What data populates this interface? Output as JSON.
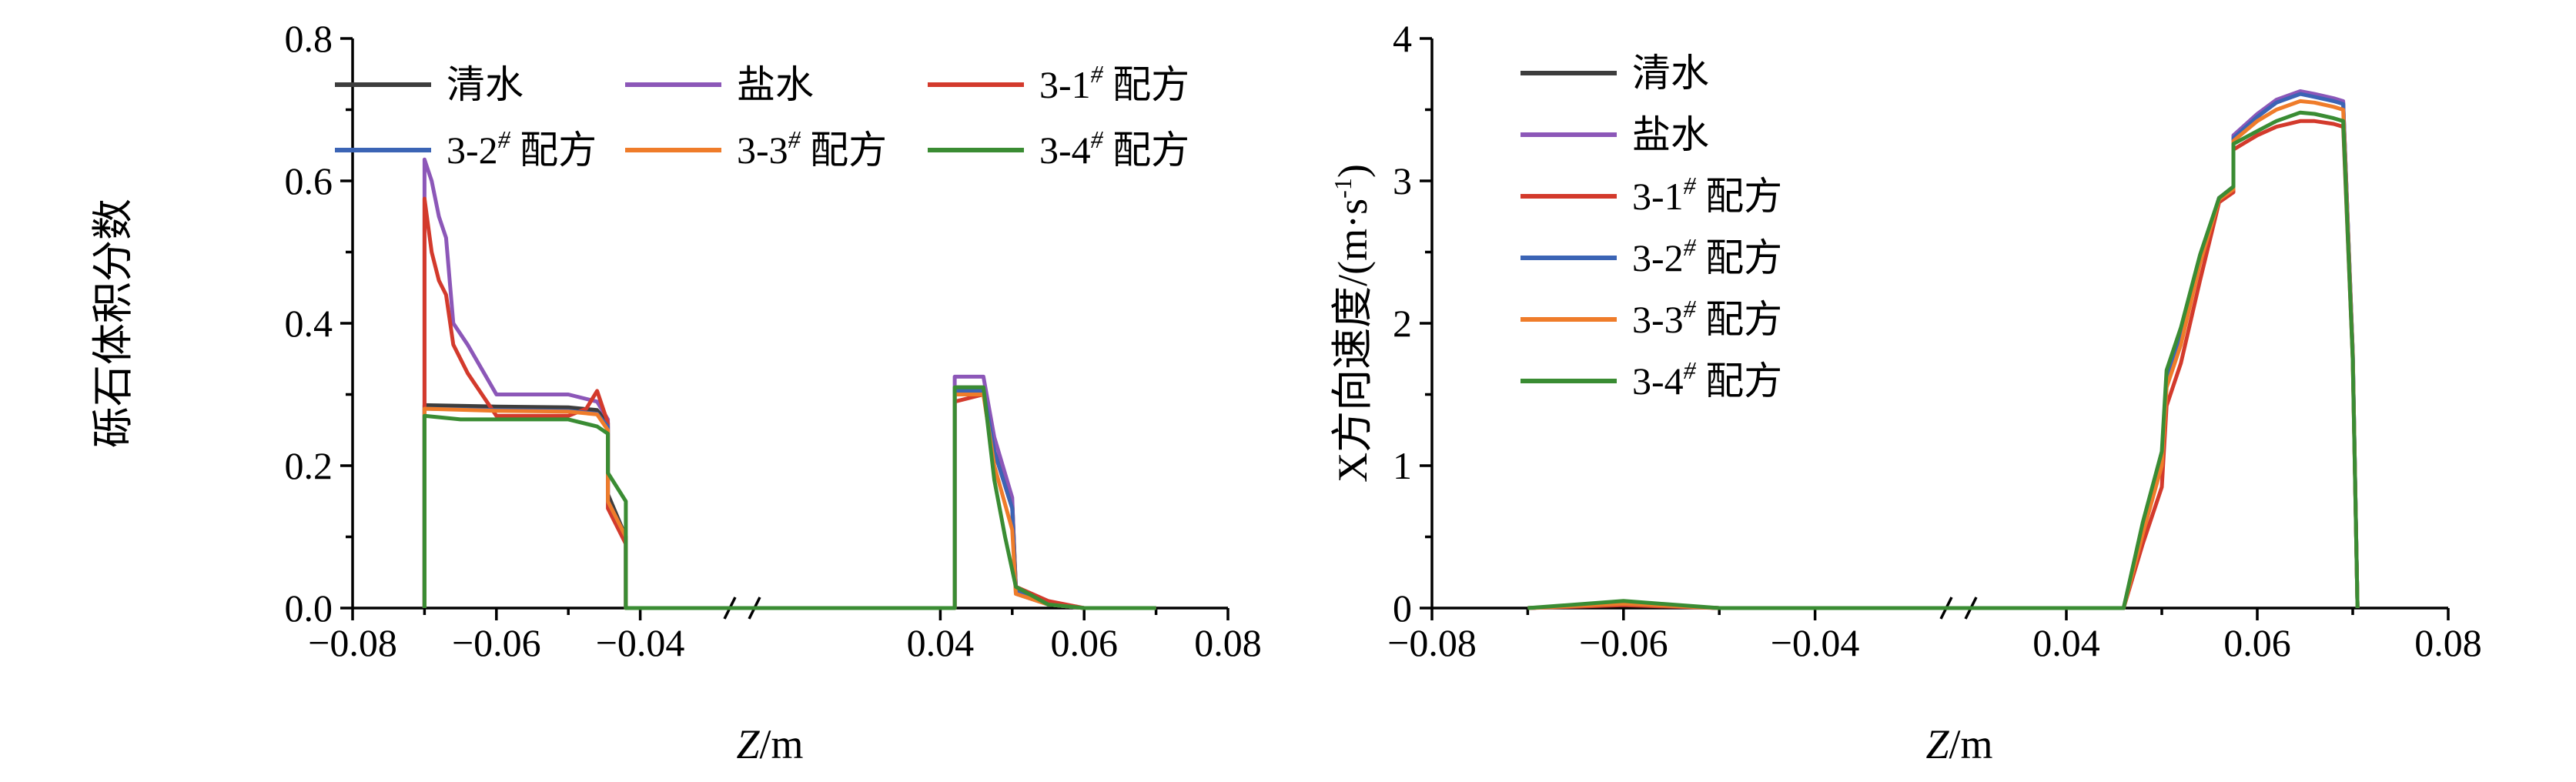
{
  "colors": {
    "清水": "#3d3d3d",
    "盐水": "#8c57b8",
    "3-1# 配方": "#d33a2c",
    "3-2# 配方": "#3b64b5",
    "3-3# 配方": "#ef7c2a",
    "3-4# 配方": "#3a8c33"
  },
  "legend_entries": [
    {
      "label": "清水",
      "base": "清水",
      "sup": ""
    },
    {
      "label": "盐水",
      "base": "盐水",
      "sup": ""
    },
    {
      "label": "3-1# 配方",
      "base": "3-1",
      "sup": "#",
      "tail": " 配方"
    },
    {
      "label": "3-2# 配方",
      "base": "3-2",
      "sup": "#",
      "tail": " 配方"
    },
    {
      "label": "3-3# 配方",
      "base": "3-3",
      "sup": "#",
      "tail": " 配方"
    },
    {
      "label": "3-4# 配方",
      "base": "3-4",
      "sup": "#",
      "tail": " 配方"
    }
  ],
  "chart_data": [
    {
      "type": "line",
      "xlabel": "Z/m",
      "ylabel": "砾石体积分数",
      "x_break": [
        -0.03,
        0.03
      ],
      "xlim": [
        -0.08,
        0.08
      ],
      "ylim": [
        0,
        0.8
      ],
      "xticks": [
        -0.08,
        -0.06,
        -0.04,
        0.04,
        0.06,
        0.08
      ],
      "xticklabels": [
        "−0.08",
        "−0.06",
        "−0.04",
        "0.04",
        "0.06",
        "0.08"
      ],
      "yticks": [
        0,
        0.2,
        0.4,
        0.6,
        0.8
      ],
      "yticklabels": [
        "0.0",
        "0.2",
        "0.4",
        "0.6",
        "0.8"
      ],
      "legend": "top, two columns of three",
      "series": [
        {
          "name": "清水",
          "points": [
            [
              -0.07,
              0
            ],
            [
              -0.07,
              0.285
            ],
            [
              -0.06,
              0.283
            ],
            [
              -0.05,
              0.282
            ],
            [
              -0.046,
              0.278
            ],
            [
              -0.0445,
              0.26
            ],
            [
              -0.0445,
              0.16
            ],
            [
              -0.042,
              0.1
            ],
            [
              -0.042,
              0
            ],
            [
              0.042,
              0
            ],
            [
              0.042,
              0.31
            ],
            [
              0.046,
              0.31
            ],
            [
              0.0475,
              0.22
            ],
            [
              0.05,
              0.15
            ],
            [
              0.0505,
              0.03
            ],
            [
              0.055,
              0.005
            ],
            [
              0.06,
              0
            ],
            [
              0.07,
              0
            ]
          ]
        },
        {
          "name": "盐水",
          "points": [
            [
              -0.07,
              0
            ],
            [
              -0.07,
              0.63
            ],
            [
              -0.069,
              0.6
            ],
            [
              -0.068,
              0.55
            ],
            [
              -0.067,
              0.52
            ],
            [
              -0.066,
              0.4
            ],
            [
              -0.064,
              0.37
            ],
            [
              -0.06,
              0.3
            ],
            [
              -0.05,
              0.3
            ],
            [
              -0.046,
              0.29
            ],
            [
              -0.0445,
              0.265
            ],
            [
              -0.0445,
              0.15
            ],
            [
              -0.042,
              0.09
            ],
            [
              -0.042,
              0
            ],
            [
              0.042,
              0
            ],
            [
              0.042,
              0.325
            ],
            [
              0.046,
              0.325
            ],
            [
              0.0475,
              0.24
            ],
            [
              0.05,
              0.155
            ],
            [
              0.0505,
              0.02
            ],
            [
              0.055,
              0.005
            ],
            [
              0.06,
              0
            ],
            [
              0.07,
              0
            ]
          ]
        },
        {
          "name": "3-1# 配方",
          "points": [
            [
              -0.07,
              0
            ],
            [
              -0.07,
              0.575
            ],
            [
              -0.069,
              0.5
            ],
            [
              -0.068,
              0.46
            ],
            [
              -0.067,
              0.44
            ],
            [
              -0.066,
              0.37
            ],
            [
              -0.064,
              0.33
            ],
            [
              -0.06,
              0.27
            ],
            [
              -0.05,
              0.27
            ],
            [
              -0.0475,
              0.28
            ],
            [
              -0.046,
              0.305
            ],
            [
              -0.0445,
              0.26
            ],
            [
              -0.0445,
              0.14
            ],
            [
              -0.042,
              0.09
            ],
            [
              -0.042,
              0
            ],
            [
              0.042,
              0
            ],
            [
              0.042,
              0.29
            ],
            [
              0.046,
              0.3
            ],
            [
              0.0475,
              0.22
            ],
            [
              0.05,
              0.14
            ],
            [
              0.0505,
              0.03
            ],
            [
              0.055,
              0.01
            ],
            [
              0.06,
              0
            ],
            [
              0.07,
              0
            ]
          ]
        },
        {
          "name": "3-2# 配方",
          "points": [
            [
              -0.07,
              0
            ],
            [
              -0.07,
              0.28
            ],
            [
              -0.06,
              0.278
            ],
            [
              -0.05,
              0.277
            ],
            [
              -0.046,
              0.273
            ],
            [
              -0.0445,
              0.255
            ],
            [
              -0.0445,
              0.15
            ],
            [
              -0.042,
              0.1
            ],
            [
              -0.042,
              0
            ],
            [
              0.042,
              0
            ],
            [
              0.042,
              0.305
            ],
            [
              0.046,
              0.305
            ],
            [
              0.0475,
              0.22
            ],
            [
              0.05,
              0.14
            ],
            [
              0.0505,
              0.025
            ],
            [
              0.055,
              0.005
            ],
            [
              0.06,
              0
            ],
            [
              0.07,
              0
            ]
          ]
        },
        {
          "name": "3-3# 配方",
          "points": [
            [
              -0.07,
              0
            ],
            [
              -0.07,
              0.28
            ],
            [
              -0.06,
              0.277
            ],
            [
              -0.05,
              0.276
            ],
            [
              -0.046,
              0.272
            ],
            [
              -0.0445,
              0.25
            ],
            [
              -0.0445,
              0.15
            ],
            [
              -0.042,
              0.1
            ],
            [
              -0.042,
              0
            ],
            [
              0.042,
              0
            ],
            [
              0.042,
              0.3
            ],
            [
              0.046,
              0.3
            ],
            [
              0.0475,
              0.2
            ],
            [
              0.05,
              0.11
            ],
            [
              0.0505,
              0.02
            ],
            [
              0.055,
              0.005
            ],
            [
              0.06,
              0
            ],
            [
              0.07,
              0
            ]
          ]
        },
        {
          "name": "3-4# 配方",
          "points": [
            [
              -0.07,
              0
            ],
            [
              -0.07,
              0.27
            ],
            [
              -0.065,
              0.265
            ],
            [
              -0.05,
              0.265
            ],
            [
              -0.046,
              0.255
            ],
            [
              -0.0445,
              0.245
            ],
            [
              -0.0445,
              0.19
            ],
            [
              -0.042,
              0.15
            ],
            [
              -0.042,
              0
            ],
            [
              0.042,
              0
            ],
            [
              0.042,
              0.31
            ],
            [
              0.046,
              0.31
            ],
            [
              0.0475,
              0.18
            ],
            [
              0.049,
              0.1
            ],
            [
              0.0505,
              0.03
            ],
            [
              0.055,
              0.005
            ],
            [
              0.06,
              0
            ],
            [
              0.07,
              0
            ]
          ]
        }
      ]
    },
    {
      "type": "line",
      "xlabel": "Z/m",
      "ylabel": "X方向速度/(m·s",
      "ylabel_sup": "-1",
      "ylabel_tail": ")",
      "x_break": [
        -0.03,
        0.03
      ],
      "xlim": [
        -0.08,
        0.08
      ],
      "ylim": [
        0,
        4
      ],
      "xticks": [
        -0.08,
        -0.06,
        -0.04,
        0.04,
        0.06,
        0.08
      ],
      "xticklabels": [
        "−0.08",
        "−0.06",
        "−0.04",
        "0.04",
        "0.06",
        "0.08"
      ],
      "yticks": [
        0,
        1,
        2,
        3,
        4
      ],
      "yticklabels": [
        "0",
        "1",
        "2",
        "3",
        "4"
      ],
      "legend": "top-left, single column",
      "series": [
        {
          "name": "清水",
          "points": [
            [
              -0.07,
              0
            ],
            [
              -0.06,
              0.03
            ],
            [
              -0.05,
              0
            ],
            [
              0.046,
              0
            ],
            [
              0.048,
              0.55
            ],
            [
              0.05,
              1.05
            ],
            [
              0.0505,
              1.6
            ],
            [
              0.052,
              1.9
            ],
            [
              0.054,
              2.45
            ],
            [
              0.056,
              2.88
            ],
            [
              0.0575,
              2.95
            ],
            [
              0.0575,
              3.3
            ],
            [
              0.06,
              3.45
            ],
            [
              0.062,
              3.55
            ],
            [
              0.0645,
              3.62
            ],
            [
              0.066,
              3.6
            ],
            [
              0.068,
              3.57
            ],
            [
              0.069,
              3.55
            ],
            [
              0.07,
              1.8
            ],
            [
              0.0705,
              0
            ]
          ]
        },
        {
          "name": "盐水",
          "points": [
            [
              -0.07,
              0
            ],
            [
              -0.06,
              0.03
            ],
            [
              -0.05,
              0
            ],
            [
              0.046,
              0
            ],
            [
              0.048,
              0.55
            ],
            [
              0.05,
              1.05
            ],
            [
              0.0505,
              1.62
            ],
            [
              0.052,
              1.92
            ],
            [
              0.054,
              2.45
            ],
            [
              0.056,
              2.88
            ],
            [
              0.0575,
              2.96
            ],
            [
              0.0575,
              3.32
            ],
            [
              0.06,
              3.47
            ],
            [
              0.062,
              3.57
            ],
            [
              0.0645,
              3.63
            ],
            [
              0.066,
              3.61
            ],
            [
              0.068,
              3.58
            ],
            [
              0.069,
              3.56
            ],
            [
              0.07,
              1.8
            ],
            [
              0.0705,
              0
            ]
          ]
        },
        {
          "name": "3-1# 配方",
          "points": [
            [
              -0.07,
              0
            ],
            [
              -0.06,
              0.02
            ],
            [
              -0.05,
              0
            ],
            [
              0.046,
              0
            ],
            [
              0.048,
              0.45
            ],
            [
              0.05,
              0.85
            ],
            [
              0.0505,
              1.42
            ],
            [
              0.052,
              1.72
            ],
            [
              0.054,
              2.3
            ],
            [
              0.056,
              2.85
            ],
            [
              0.0575,
              2.92
            ],
            [
              0.0575,
              3.22
            ],
            [
              0.06,
              3.32
            ],
            [
              0.062,
              3.38
            ],
            [
              0.0645,
              3.42
            ],
            [
              0.066,
              3.42
            ],
            [
              0.068,
              3.4
            ],
            [
              0.069,
              3.38
            ],
            [
              0.07,
              1.75
            ],
            [
              0.0705,
              0
            ]
          ]
        },
        {
          "name": "3-2# 配方",
          "points": [
            [
              -0.07,
              0
            ],
            [
              -0.06,
              0.03
            ],
            [
              -0.05,
              0
            ],
            [
              0.046,
              0
            ],
            [
              0.048,
              0.55
            ],
            [
              0.05,
              1.05
            ],
            [
              0.0505,
              1.6
            ],
            [
              0.052,
              1.9
            ],
            [
              0.054,
              2.45
            ],
            [
              0.056,
              2.88
            ],
            [
              0.0575,
              2.95
            ],
            [
              0.0575,
              3.3
            ],
            [
              0.06,
              3.45
            ],
            [
              0.062,
              3.55
            ],
            [
              0.0645,
              3.61
            ],
            [
              0.066,
              3.59
            ],
            [
              0.068,
              3.56
            ],
            [
              0.069,
              3.54
            ],
            [
              0.07,
              1.8
            ],
            [
              0.0705,
              0
            ]
          ]
        },
        {
          "name": "3-3# 配方",
          "points": [
            [
              -0.07,
              0
            ],
            [
              -0.06,
              0.03
            ],
            [
              -0.05,
              0
            ],
            [
              0.046,
              0
            ],
            [
              0.048,
              0.52
            ],
            [
              0.05,
              1.0
            ],
            [
              0.0505,
              1.55
            ],
            [
              0.052,
              1.85
            ],
            [
              0.054,
              2.42
            ],
            [
              0.056,
              2.87
            ],
            [
              0.0575,
              2.94
            ],
            [
              0.0575,
              3.28
            ],
            [
              0.06,
              3.42
            ],
            [
              0.062,
              3.5
            ],
            [
              0.0645,
              3.56
            ],
            [
              0.066,
              3.55
            ],
            [
              0.068,
              3.52
            ],
            [
              0.069,
              3.5
            ],
            [
              0.07,
              1.78
            ],
            [
              0.0705,
              0
            ]
          ]
        },
        {
          "name": "3-4# 配方",
          "points": [
            [
              -0.07,
              0
            ],
            [
              -0.06,
              0.05
            ],
            [
              -0.05,
              0
            ],
            [
              0.046,
              0
            ],
            [
              0.048,
              0.6
            ],
            [
              0.05,
              1.1
            ],
            [
              0.0505,
              1.67
            ],
            [
              0.052,
              1.97
            ],
            [
              0.054,
              2.48
            ],
            [
              0.056,
              2.88
            ],
            [
              0.0575,
              2.96
            ],
            [
              0.0575,
              3.26
            ],
            [
              0.06,
              3.35
            ],
            [
              0.062,
              3.42
            ],
            [
              0.0645,
              3.48
            ],
            [
              0.066,
              3.47
            ],
            [
              0.068,
              3.44
            ],
            [
              0.069,
              3.42
            ],
            [
              0.07,
              1.75
            ],
            [
              0.0705,
              0
            ]
          ]
        }
      ]
    }
  ]
}
